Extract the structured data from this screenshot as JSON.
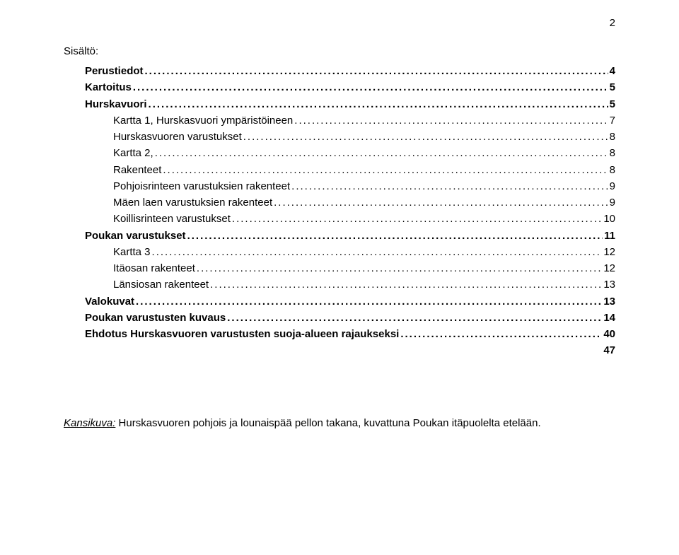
{
  "page_number": "2",
  "heading": "Sisältö:",
  "toc": [
    {
      "label": "Perustiedot",
      "page": "4",
      "indent": 1,
      "bold": true,
      "leader": true
    },
    {
      "label": "Kartoitus",
      "page": "5",
      "indent": 1,
      "bold": true,
      "leader": true
    },
    {
      "label": "Hurskavuori",
      "page": "5",
      "indent": 1,
      "bold": true,
      "leader": true
    },
    {
      "label": "Kartta 1, Hurskasvuori ympäristöineen",
      "page": "7",
      "indent": 2,
      "bold": false,
      "leader": true
    },
    {
      "label": "Hurskasvuoren varustukset",
      "page": "8",
      "indent": 2,
      "bold": false,
      "leader": true
    },
    {
      "label": "Kartta 2,",
      "page": "8",
      "indent": 2,
      "bold": false,
      "leader": true
    },
    {
      "label": "Rakenteet",
      "page": "8",
      "indent": 2,
      "bold": false,
      "leader": true
    },
    {
      "label": "Pohjoisrinteen varustuksien rakenteet",
      "page": "9",
      "indent": 2,
      "bold": false,
      "leader": true
    },
    {
      "label": "Mäen laen varustuksien rakenteet",
      "page": "9",
      "indent": 2,
      "bold": false,
      "leader": true
    },
    {
      "label": "Koillisrinteen varustukset",
      "page": "10",
      "indent": 2,
      "bold": false,
      "leader": true
    },
    {
      "label": "Poukan varustukset",
      "page": "11",
      "indent": 1,
      "bold": true,
      "leader": true
    },
    {
      "label": "Kartta 3",
      "page": "12",
      "indent": 2,
      "bold": false,
      "leader": true
    },
    {
      "label": "Itäosan rakenteet",
      "page": "12",
      "indent": 2,
      "bold": false,
      "leader": true
    },
    {
      "label": "Länsiosan rakenteet",
      "page": "13",
      "indent": 2,
      "bold": false,
      "leader": true
    },
    {
      "label": "Valokuvat",
      "page": "13",
      "indent": 1,
      "bold": true,
      "leader": true
    },
    {
      "label": "Poukan varustusten kuvaus",
      "page": "14",
      "indent": 1,
      "bold": true,
      "leader": true
    },
    {
      "label": "Ehdotus Hurskasvuoren varustusten suoja-alueen rajaukseksi",
      "page": "40",
      "indent": 1,
      "bold": true,
      "leader": true
    },
    {
      "label": "",
      "page": "47",
      "indent": 1,
      "bold": true,
      "leader": false
    }
  ],
  "caption": {
    "label": "Kansikuva:",
    "text": " Hurskasvuoren pohjois ja lounaispää pellon takana, kuvattuna Poukan itäpuolelta etelään."
  }
}
